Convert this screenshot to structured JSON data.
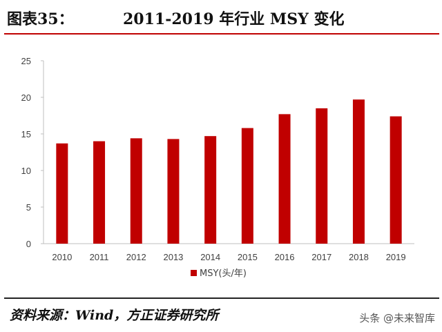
{
  "header": {
    "label": "图表35：",
    "title": "2011-2019 年行业 MSY 变化"
  },
  "chart_data": {
    "type": "bar",
    "categories": [
      "2010",
      "2011",
      "2012",
      "2013",
      "2014",
      "2015",
      "2016",
      "2017",
      "2018",
      "2019"
    ],
    "series": [
      {
        "name": "MSY(头/年)",
        "values": [
          13.7,
          14.0,
          14.4,
          14.3,
          14.7,
          15.8,
          17.7,
          18.5,
          19.7,
          17.4
        ],
        "color": "#c00000"
      }
    ],
    "yticks": [
      "0",
      "5",
      "10",
      "15",
      "20",
      "25"
    ],
    "ylim": [
      0,
      25
    ],
    "grid": false,
    "legend_position": "bottom-center"
  },
  "footer": {
    "source": "资料来源：Wind，方正证券研究所",
    "watermark": "头条 @未来智库"
  }
}
